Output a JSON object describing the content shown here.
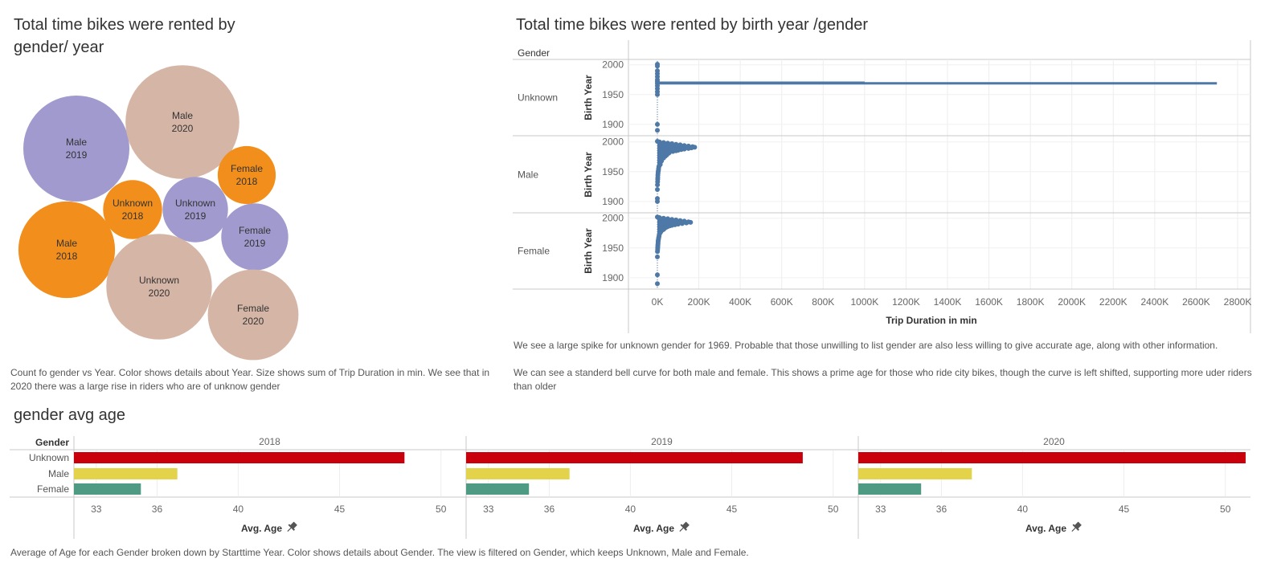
{
  "bubble": {
    "title": "Total time bikes were rented by gender/ year",
    "caption": "Count fo gender vs Year.  Color shows details about Year.  Size shows sum of Trip Duration in min.  We see that in 2020 there was a large rise in riders who are of unknow gender",
    "colors": {
      "2018": "#f28e1b",
      "2019": "#a09ace",
      "2020": "#d5b5a5"
    },
    "chart_data": {
      "type": "bubble",
      "items": [
        {
          "gender": "Male",
          "year": "2019",
          "relative_size": 1.0
        },
        {
          "gender": "Male",
          "year": "2020",
          "relative_size": 1.15
        },
        {
          "gender": "Female",
          "year": "2018",
          "relative_size": 0.3
        },
        {
          "gender": "Unknown",
          "year": "2018",
          "relative_size": 0.31
        },
        {
          "gender": "Unknown",
          "year": "2019",
          "relative_size": 0.38
        },
        {
          "gender": "Female",
          "year": "2019",
          "relative_size": 0.4
        },
        {
          "gender": "Male",
          "year": "2018",
          "relative_size": 0.83
        },
        {
          "gender": "Unknown",
          "year": "2020",
          "relative_size": 0.99
        },
        {
          "gender": "Female",
          "year": "2020",
          "relative_size": 0.73
        }
      ]
    }
  },
  "scatter": {
    "title": "Total time bikes were rented by birth year /gender",
    "row_header": "Gender",
    "caption_line1": "We see a large spike for unknown gender for 1969. Probable that those unwilling to list gender are also less willing to give accurate age, along with other information.",
    "caption_line2": "We can see a standerd bell curve for both male and female. This shows a prime age for those who ride city bikes, though the curve is left shifted, supporting more uder riders than older",
    "mark_color": "#4e79a7",
    "chart_data": {
      "type": "scatter",
      "xlabel": "Trip Duration in min",
      "ylabel": "Birth Year",
      "xlim": [
        0,
        2800000
      ],
      "ylim": [
        1885,
        2005
      ],
      "x_ticks": [
        0,
        200000,
        400000,
        600000,
        800000,
        1000000,
        1200000,
        1400000,
        1600000,
        1800000,
        2000000,
        2200000,
        2400000,
        2600000,
        2800000
      ],
      "x_tick_labels": [
        "0K",
        "200K",
        "400K",
        "600K",
        "800K",
        "1000K",
        "1200K",
        "1400K",
        "1600K",
        "1800K",
        "2000K",
        "2200K",
        "2400K",
        "2600K",
        "2800K"
      ],
      "y_ticks": [
        1900,
        1950,
        2000
      ],
      "y_tick_labels": [
        "1900",
        "1950",
        "2000"
      ],
      "panels": [
        {
          "gender": "Unknown",
          "points": [
            [
              0,
              2001
            ],
            [
              0,
              1998
            ],
            [
              0,
              1990
            ],
            [
              0,
              1985
            ],
            [
              0,
              1980
            ],
            [
              0,
              1975
            ],
            [
              0,
              1972
            ],
            [
              0,
              1969
            ],
            [
              0,
              1965
            ],
            [
              0,
              1960
            ],
            [
              0,
              1955
            ],
            [
              0,
              1950
            ],
            [
              0,
              1900
            ],
            [
              0,
              1890
            ]
          ],
          "spikes": [
            {
              "year": 1969,
              "x_start": 0,
              "x_end": 2700000
            },
            {
              "year": 1970,
              "x_start": 0,
              "x_end": 1000000
            }
          ]
        },
        {
          "gender": "Male",
          "points": [
            [
              0,
              2001
            ],
            [
              10000,
              2000
            ],
            [
              30000,
              1999
            ],
            [
              50000,
              1998
            ],
            [
              70000,
              1997
            ],
            [
              90000,
              1996
            ],
            [
              110000,
              1995
            ],
            [
              130000,
              1994
            ],
            [
              150000,
              1993
            ],
            [
              170000,
              1992
            ],
            [
              180000,
              1991
            ],
            [
              165000,
              1990
            ],
            [
              150000,
              1989
            ],
            [
              130000,
              1988
            ],
            [
              115000,
              1987
            ],
            [
              100000,
              1986
            ],
            [
              90000,
              1985
            ],
            [
              75000,
              1984
            ],
            [
              60000,
              1983
            ],
            [
              50000,
              1982
            ],
            [
              55000,
              1981
            ],
            [
              48000,
              1980
            ],
            [
              40000,
              1979
            ],
            [
              45000,
              1978
            ],
            [
              32000,
              1977
            ],
            [
              38000,
              1976
            ],
            [
              28000,
              1975
            ],
            [
              25000,
              1974
            ],
            [
              30000,
              1973
            ],
            [
              22000,
              1972
            ],
            [
              18000,
              1970
            ],
            [
              20000,
              1968
            ],
            [
              15000,
              1966
            ],
            [
              12000,
              1964
            ],
            [
              14000,
              1962
            ],
            [
              9000,
              1960
            ],
            [
              7000,
              1958
            ],
            [
              6000,
              1955
            ],
            [
              5000,
              1952
            ],
            [
              4000,
              1950
            ],
            [
              3000,
              1947
            ],
            [
              2500,
              1944
            ],
            [
              2000,
              1940
            ],
            [
              1500,
              1937
            ],
            [
              1000,
              1933
            ],
            [
              500,
              1928
            ],
            [
              0,
              1920
            ],
            [
              0,
              1905
            ],
            [
              0,
              1900
            ]
          ]
        },
        {
          "gender": "Female",
          "points": [
            [
              0,
              2002
            ],
            [
              10000,
              2001
            ],
            [
              30000,
              2000
            ],
            [
              50000,
              1999
            ],
            [
              70000,
              1998
            ],
            [
              90000,
              1997
            ],
            [
              110000,
              1996
            ],
            [
              130000,
              1995
            ],
            [
              150000,
              1994
            ],
            [
              160000,
              1993
            ],
            [
              140000,
              1992
            ],
            [
              120000,
              1991
            ],
            [
              100000,
              1990
            ],
            [
              85000,
              1989
            ],
            [
              70000,
              1988
            ],
            [
              60000,
              1987
            ],
            [
              50000,
              1986
            ],
            [
              45000,
              1985
            ],
            [
              38000,
              1984
            ],
            [
              35000,
              1983
            ],
            [
              28000,
              1982
            ],
            [
              30000,
              1981
            ],
            [
              22000,
              1980
            ],
            [
              20000,
              1979
            ],
            [
              18000,
              1978
            ],
            [
              16000,
              1977
            ],
            [
              14000,
              1976
            ],
            [
              12000,
              1975
            ],
            [
              10000,
              1974
            ],
            [
              9000,
              1972
            ],
            [
              8000,
              1970
            ],
            [
              7000,
              1968
            ],
            [
              6000,
              1966
            ],
            [
              5000,
              1964
            ],
            [
              4000,
              1962
            ],
            [
              3500,
              1960
            ],
            [
              3000,
              1957
            ],
            [
              2500,
              1955
            ],
            [
              2000,
              1952
            ],
            [
              1500,
              1950
            ],
            [
              1000,
              1947
            ],
            [
              500,
              1944
            ],
            [
              0,
              1935
            ],
            [
              0,
              1905
            ],
            [
              0,
              1890
            ]
          ]
        }
      ]
    }
  },
  "bar": {
    "title": "gender avg age",
    "row_header": "Gender",
    "caption": "Average of Age for each Gender broken down by Starttime Year.  Color shows details about Gender. The view is filtered on Gender, which keeps Unknown, Male and Female.",
    "pin_glyph": "pin-icon",
    "colors": {
      "Unknown": "#c9000c",
      "Male": "#e2d34a",
      "Female": "#4e9a83"
    },
    "chart_data": {
      "type": "bar",
      "orientation": "horizontal",
      "categories": [
        "Unknown",
        "Male",
        "Female"
      ],
      "xlabel": "Avg. Age",
      "xlim": [
        31.9,
        51.2
      ],
      "x_ticks": [
        33,
        36,
        40,
        45,
        50
      ],
      "panels": [
        {
          "year": "2018",
          "values": [
            48.2,
            37.0,
            35.2
          ]
        },
        {
          "year": "2019",
          "values": [
            48.5,
            37.0,
            35.0
          ]
        },
        {
          "year": "2020",
          "values": [
            51.0,
            37.5,
            35.0
          ]
        }
      ]
    }
  }
}
